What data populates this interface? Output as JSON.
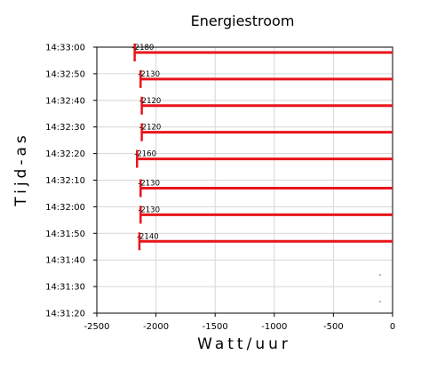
{
  "chart_data": {
    "type": "bar",
    "orientation": "horizontal",
    "title": "Energiestroom",
    "xlabel": "Watt/uur",
    "ylabel": "Tijd-as",
    "xlim": [
      -2500,
      0
    ],
    "x_ticks": [
      -2500,
      -2000,
      -1500,
      -1000,
      -500,
      0
    ],
    "x_tick_labels": [
      "-2500",
      "-2000",
      "-1500",
      "-1000",
      "-500",
      "0"
    ],
    "y_ticks": [
      "14:33:00",
      "14:32:50",
      "14:32:40",
      "14:32:30",
      "14:32:20",
      "14:32:10",
      "14:32:00",
      "14:31:50",
      "14:31:40",
      "14:31:30",
      "14:31:20"
    ],
    "grid": true,
    "color": "#e8141a",
    "bars": [
      {
        "time": "14:32:58",
        "value": -2180,
        "label": "-2180"
      },
      {
        "time": "14:32:48",
        "value": -2130,
        "label": "-2130"
      },
      {
        "time": "14:32:38",
        "value": -2120,
        "label": "-2120"
      },
      {
        "time": "14:32:28",
        "value": -2120,
        "label": "-2120"
      },
      {
        "time": "14:32:18",
        "value": -2160,
        "label": "-2160"
      },
      {
        "time": "14:32:07",
        "value": -2130,
        "label": "-2130"
      },
      {
        "time": "14:31:57",
        "value": -2130,
        "label": "-2130"
      },
      {
        "time": "14:31:47",
        "value": -2140,
        "label": "-2140"
      }
    ]
  }
}
